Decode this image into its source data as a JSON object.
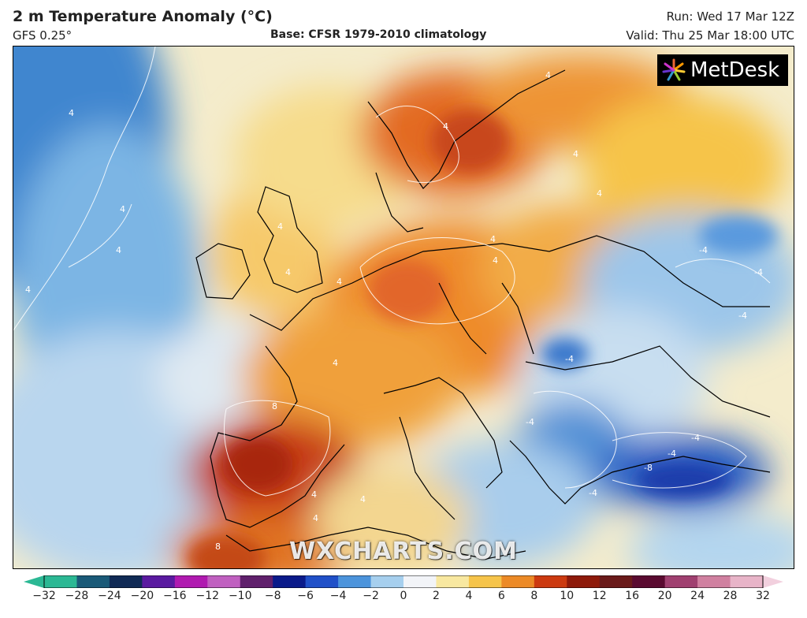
{
  "header": {
    "title": "2 m Temperature Anomaly (°C)",
    "model": "GFS 0.25°",
    "base": "Base: CFSR 1979-2010 climatology",
    "run": "Run: Wed 17 Mar 12Z",
    "valid": "Valid: Thu 25 Mar 18:00 UTC"
  },
  "logo": {
    "text": "MetDesk",
    "icon": "metdesk-star-icon"
  },
  "watermark": "WXCHARTS.COM",
  "contour_labels": [
    "4",
    "4",
    "4",
    "4",
    "4",
    "4",
    "4",
    "4",
    "4",
    "4",
    "4",
    "4",
    "4",
    "4",
    "4",
    "4",
    "4",
    "8",
    "8",
    "-4",
    "-4",
    "-4",
    "-4",
    "-4",
    "-4",
    "-4",
    "-4",
    "-8"
  ],
  "colorbar": {
    "ticks": [
      "−32",
      "−28",
      "−24",
      "−20",
      "−16",
      "−12",
      "−10",
      "−8",
      "−6",
      "−4",
      "−2",
      "0",
      "2",
      "4",
      "6",
      "8",
      "10",
      "12",
      "16",
      "20",
      "24",
      "28",
      "32"
    ],
    "colors": [
      "#2bb894",
      "#1a5a78",
      "#102a55",
      "#5a1aa0",
      "#b01ab0",
      "#c060c0",
      "#60206c",
      "#0a1a8a",
      "#2050c8",
      "#4c94dc",
      "#a6cfee",
      "#f2f4f8",
      "#f8e8a0",
      "#f6c44a",
      "#ec8a26",
      "#cc3a10",
      "#8e1a0a",
      "#6a1a1a",
      "#5a0a30",
      "#a04070",
      "#d080a0",
      "#e8b4c8"
    ]
  }
}
